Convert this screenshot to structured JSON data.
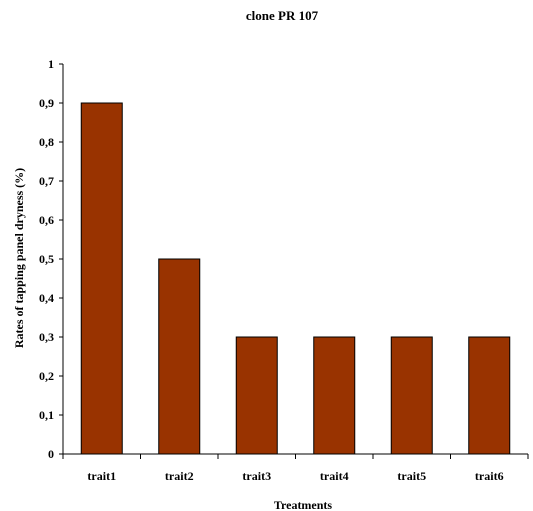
{
  "chart_data": {
    "type": "bar",
    "title": "clone PR 107",
    "xlabel": "Treatments",
    "ylabel": "Rates of tapping panel dryness (%)",
    "categories": [
      "trait1",
      "trait2",
      "trait3",
      "trait4",
      "trait5",
      "trait6"
    ],
    "values": [
      0.9,
      0.5,
      0.3,
      0.3,
      0.3,
      0.3
    ],
    "ylim": [
      0,
      1
    ],
    "yticks": [
      "0",
      "0,1",
      "0,2",
      "0,3",
      "0,4",
      "0,5",
      "0,6",
      "0,7",
      "0,8",
      "0,9",
      "1"
    ],
    "grid": false,
    "legend": "none",
    "bar_color": "#993300",
    "bar_edge_color": "#000000"
  }
}
